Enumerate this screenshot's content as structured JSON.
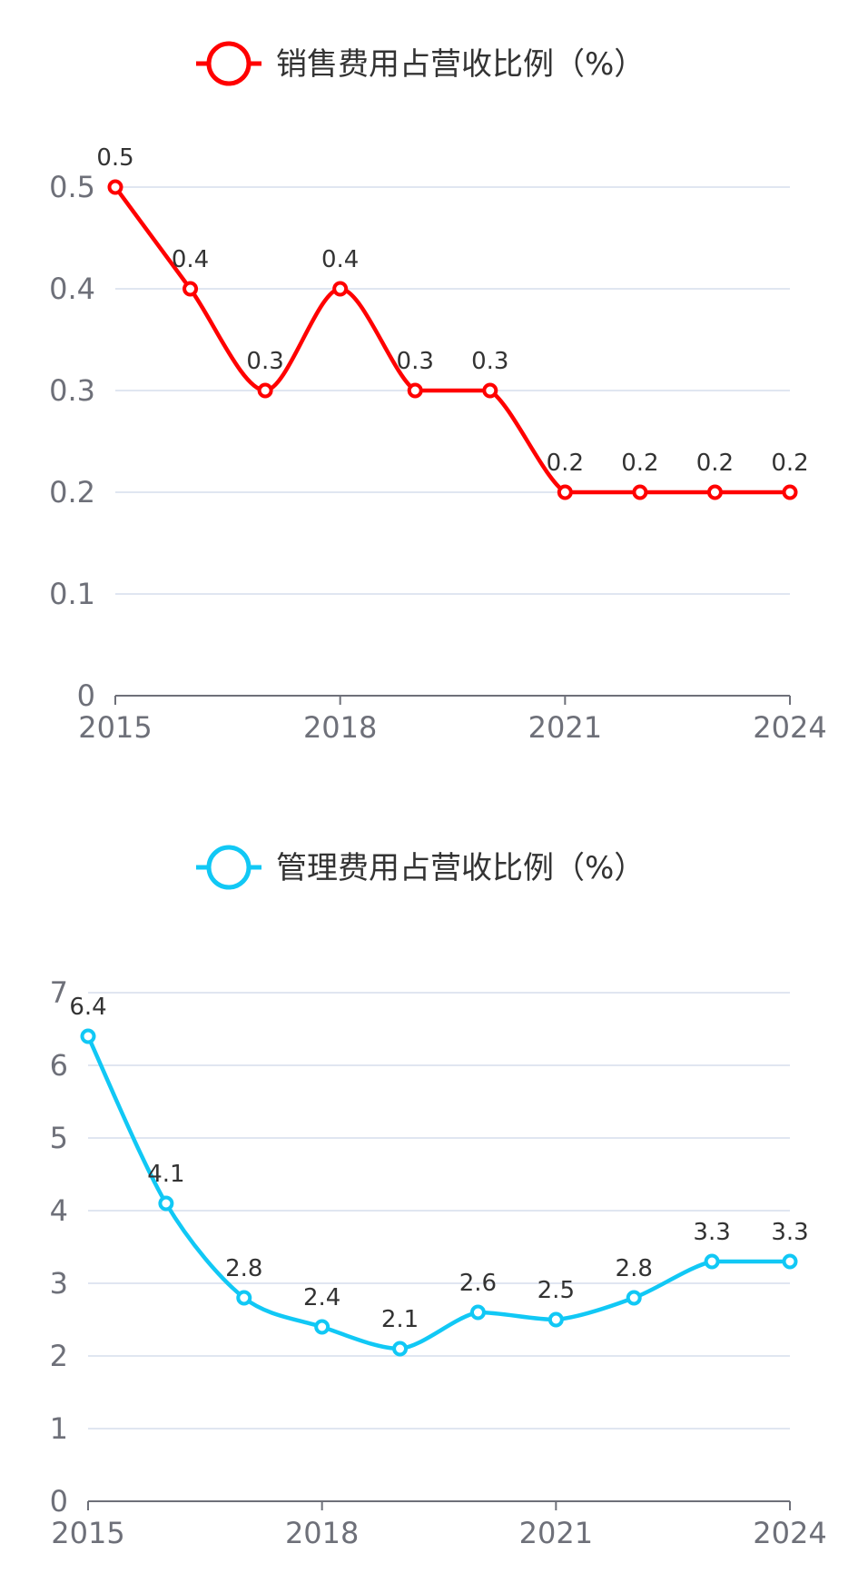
{
  "chart_data": [
    {
      "type": "line",
      "legend": "销售费用占营收比例（%）",
      "color": "#ff0000",
      "smooth": true,
      "grid": true,
      "legend_position": "top-center",
      "x": [
        "2015",
        "2016",
        "2017",
        "2018",
        "2019",
        "2020",
        "2021",
        "2022",
        "2023",
        "2024"
      ],
      "x_tick_labels": [
        "2015",
        "2018",
        "2021",
        "2024"
      ],
      "series": [
        {
          "name": "销售费用占营收比例（%）",
          "values": [
            0.5,
            0.4,
            0.3,
            0.4,
            0.3,
            0.3,
            0.2,
            0.2,
            0.2,
            0.2
          ]
        }
      ],
      "data_labels": [
        "0.5",
        "0.4",
        "0.3",
        "0.4",
        "0.3",
        "0.3",
        "0.2",
        "0.2",
        "0.2",
        "0.2"
      ],
      "ylim": [
        0,
        0.5
      ],
      "y_ticks": [
        0,
        0.1,
        0.2,
        0.3,
        0.4,
        0.5
      ],
      "y_tick_labels": [
        "0",
        "0.1",
        "0.2",
        "0.3",
        "0.4",
        "0.5"
      ]
    },
    {
      "type": "line",
      "legend": "管理费用占营收比例（%）",
      "color": "#11c8f5",
      "smooth": true,
      "grid": true,
      "legend_position": "top-center",
      "x": [
        "2015",
        "2016",
        "2017",
        "2018",
        "2019",
        "2020",
        "2021",
        "2022",
        "2023",
        "2024"
      ],
      "x_tick_labels": [
        "2015",
        "2018",
        "2021",
        "2024"
      ],
      "series": [
        {
          "name": "管理费用占营收比例（%）",
          "values": [
            6.4,
            4.1,
            2.8,
            2.4,
            2.1,
            2.6,
            2.5,
            2.8,
            3.3,
            3.3
          ]
        }
      ],
      "data_labels": [
        "6.4",
        "4.1",
        "2.8",
        "2.4",
        "2.1",
        "2.6",
        "2.5",
        "2.8",
        "3.3",
        "3.3"
      ],
      "ylim": [
        0,
        7
      ],
      "y_ticks": [
        0,
        1,
        2,
        3,
        4,
        5,
        6,
        7
      ],
      "y_tick_labels": [
        "0",
        "1",
        "2",
        "3",
        "4",
        "5",
        "6",
        "7"
      ]
    }
  ]
}
